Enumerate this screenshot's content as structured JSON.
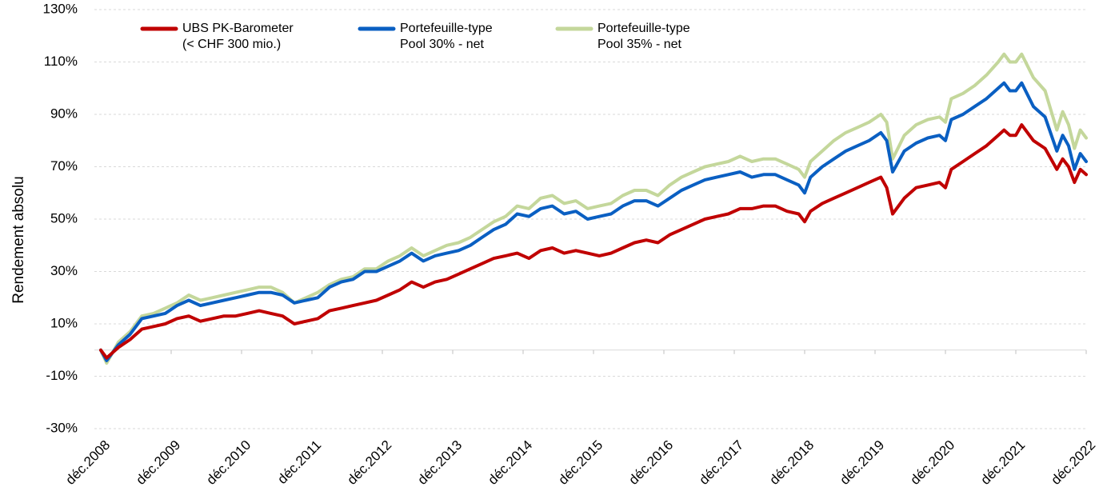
{
  "chart_data": {
    "type": "line",
    "ylabel": "Rendement absolu",
    "ylim": [
      -30,
      130
    ],
    "yticks": [
      -30,
      -10,
      10,
      30,
      50,
      70,
      90,
      110,
      130
    ],
    "ytick_labels": [
      "-30%",
      "-10%",
      "10%",
      "30%",
      "50%",
      "70%",
      "90%",
      "110%",
      "130%"
    ],
    "x_range": [
      2008.917,
      2022.917
    ],
    "x_ticks": [
      {
        "x": 2008.917,
        "label": "déc.2008"
      },
      {
        "x": 2009.917,
        "label": "déc.2009"
      },
      {
        "x": 2010.917,
        "label": "déc.2010"
      },
      {
        "x": 2011.917,
        "label": "déc.2011"
      },
      {
        "x": 2012.917,
        "label": "déc.2012"
      },
      {
        "x": 2013.917,
        "label": "déc.2013"
      },
      {
        "x": 2014.917,
        "label": "déc.2014"
      },
      {
        "x": 2015.917,
        "label": "déc.2015"
      },
      {
        "x": 2016.917,
        "label": "déc.2016"
      },
      {
        "x": 2017.917,
        "label": "déc.2017"
      },
      {
        "x": 2018.917,
        "label": "déc.2018"
      },
      {
        "x": 2019.917,
        "label": "déc.2019"
      },
      {
        "x": 2020.917,
        "label": "déc.2020"
      },
      {
        "x": 2021.917,
        "label": "déc.2021"
      },
      {
        "x": 2022.917,
        "label": "déc.2022"
      }
    ],
    "grid": true,
    "legend_position": "top",
    "series": [
      {
        "name_lines": [
          "UBS PK-Barometer",
          "(< CHF 300 mio.)"
        ],
        "color": "#c00000",
        "points": [
          [
            2008.917,
            0
          ],
          [
            2009.0,
            -3
          ],
          [
            2009.167,
            1
          ],
          [
            2009.333,
            4
          ],
          [
            2009.5,
            8
          ],
          [
            2009.667,
            9
          ],
          [
            2009.833,
            10
          ],
          [
            2010.0,
            12
          ],
          [
            2010.167,
            13
          ],
          [
            2010.333,
            11
          ],
          [
            2010.5,
            12
          ],
          [
            2010.667,
            13
          ],
          [
            2010.833,
            13
          ],
          [
            2011.0,
            14
          ],
          [
            2011.167,
            15
          ],
          [
            2011.333,
            14
          ],
          [
            2011.5,
            13
          ],
          [
            2011.667,
            10
          ],
          [
            2011.833,
            11
          ],
          [
            2012.0,
            12
          ],
          [
            2012.167,
            15
          ],
          [
            2012.333,
            16
          ],
          [
            2012.5,
            17
          ],
          [
            2012.667,
            18
          ],
          [
            2012.833,
            19
          ],
          [
            2013.0,
            21
          ],
          [
            2013.167,
            23
          ],
          [
            2013.333,
            26
          ],
          [
            2013.5,
            24
          ],
          [
            2013.667,
            26
          ],
          [
            2013.833,
            27
          ],
          [
            2014.0,
            29
          ],
          [
            2014.167,
            31
          ],
          [
            2014.333,
            33
          ],
          [
            2014.5,
            35
          ],
          [
            2014.667,
            36
          ],
          [
            2014.833,
            37
          ],
          [
            2015.0,
            35
          ],
          [
            2015.167,
            38
          ],
          [
            2015.333,
            39
          ],
          [
            2015.5,
            37
          ],
          [
            2015.667,
            38
          ],
          [
            2015.833,
            37
          ],
          [
            2016.0,
            36
          ],
          [
            2016.167,
            37
          ],
          [
            2016.333,
            39
          ],
          [
            2016.5,
            41
          ],
          [
            2016.667,
            42
          ],
          [
            2016.833,
            41
          ],
          [
            2017.0,
            44
          ],
          [
            2017.167,
            46
          ],
          [
            2017.333,
            48
          ],
          [
            2017.5,
            50
          ],
          [
            2017.667,
            51
          ],
          [
            2017.833,
            52
          ],
          [
            2018.0,
            54
          ],
          [
            2018.167,
            54
          ],
          [
            2018.333,
            55
          ],
          [
            2018.5,
            55
          ],
          [
            2018.667,
            53
          ],
          [
            2018.833,
            52
          ],
          [
            2018.917,
            49
          ],
          [
            2019.0,
            53
          ],
          [
            2019.167,
            56
          ],
          [
            2019.333,
            58
          ],
          [
            2019.5,
            60
          ],
          [
            2019.667,
            62
          ],
          [
            2019.833,
            64
          ],
          [
            2020.0,
            66
          ],
          [
            2020.083,
            62
          ],
          [
            2020.167,
            52
          ],
          [
            2020.333,
            58
          ],
          [
            2020.5,
            62
          ],
          [
            2020.667,
            63
          ],
          [
            2020.833,
            64
          ],
          [
            2020.917,
            62
          ],
          [
            2021.0,
            69
          ],
          [
            2021.167,
            72
          ],
          [
            2021.333,
            75
          ],
          [
            2021.5,
            78
          ],
          [
            2021.667,
            82
          ],
          [
            2021.75,
            84
          ],
          [
            2021.833,
            82
          ],
          [
            2021.917,
            82
          ],
          [
            2022.0,
            86
          ],
          [
            2022.167,
            80
          ],
          [
            2022.333,
            77
          ],
          [
            2022.5,
            69
          ],
          [
            2022.583,
            73
          ],
          [
            2022.667,
            70
          ],
          [
            2022.75,
            64
          ],
          [
            2022.833,
            69
          ],
          [
            2022.917,
            67
          ]
        ]
      },
      {
        "name_lines": [
          "Portefeuille-type",
          "Pool 30% - net"
        ],
        "color": "#0a5fc2",
        "points": [
          [
            2008.917,
            0
          ],
          [
            2009.0,
            -4
          ],
          [
            2009.167,
            2
          ],
          [
            2009.333,
            6
          ],
          [
            2009.5,
            12
          ],
          [
            2009.667,
            13
          ],
          [
            2009.833,
            14
          ],
          [
            2010.0,
            17
          ],
          [
            2010.167,
            19
          ],
          [
            2010.333,
            17
          ],
          [
            2010.5,
            18
          ],
          [
            2010.667,
            19
          ],
          [
            2010.833,
            20
          ],
          [
            2011.0,
            21
          ],
          [
            2011.167,
            22
          ],
          [
            2011.333,
            22
          ],
          [
            2011.5,
            21
          ],
          [
            2011.667,
            18
          ],
          [
            2011.833,
            19
          ],
          [
            2012.0,
            20
          ],
          [
            2012.167,
            24
          ],
          [
            2012.333,
            26
          ],
          [
            2012.5,
            27
          ],
          [
            2012.667,
            30
          ],
          [
            2012.833,
            30
          ],
          [
            2013.0,
            32
          ],
          [
            2013.167,
            34
          ],
          [
            2013.333,
            37
          ],
          [
            2013.5,
            34
          ],
          [
            2013.667,
            36
          ],
          [
            2013.833,
            37
          ],
          [
            2014.0,
            38
          ],
          [
            2014.167,
            40
          ],
          [
            2014.333,
            43
          ],
          [
            2014.5,
            46
          ],
          [
            2014.667,
            48
          ],
          [
            2014.833,
            52
          ],
          [
            2015.0,
            51
          ],
          [
            2015.167,
            54
          ],
          [
            2015.333,
            55
          ],
          [
            2015.5,
            52
          ],
          [
            2015.667,
            53
          ],
          [
            2015.833,
            50
          ],
          [
            2016.0,
            51
          ],
          [
            2016.167,
            52
          ],
          [
            2016.333,
            55
          ],
          [
            2016.5,
            57
          ],
          [
            2016.667,
            57
          ],
          [
            2016.833,
            55
          ],
          [
            2017.0,
            58
          ],
          [
            2017.167,
            61
          ],
          [
            2017.333,
            63
          ],
          [
            2017.5,
            65
          ],
          [
            2017.667,
            66
          ],
          [
            2017.833,
            67
          ],
          [
            2018.0,
            68
          ],
          [
            2018.167,
            66
          ],
          [
            2018.333,
            67
          ],
          [
            2018.5,
            67
          ],
          [
            2018.667,
            65
          ],
          [
            2018.833,
            63
          ],
          [
            2018.917,
            60
          ],
          [
            2019.0,
            66
          ],
          [
            2019.167,
            70
          ],
          [
            2019.333,
            73
          ],
          [
            2019.5,
            76
          ],
          [
            2019.667,
            78
          ],
          [
            2019.833,
            80
          ],
          [
            2020.0,
            83
          ],
          [
            2020.083,
            80
          ],
          [
            2020.167,
            68
          ],
          [
            2020.333,
            76
          ],
          [
            2020.5,
            79
          ],
          [
            2020.667,
            81
          ],
          [
            2020.833,
            82
          ],
          [
            2020.917,
            80
          ],
          [
            2021.0,
            88
          ],
          [
            2021.167,
            90
          ],
          [
            2021.333,
            93
          ],
          [
            2021.5,
            96
          ],
          [
            2021.667,
            100
          ],
          [
            2021.75,
            102
          ],
          [
            2021.833,
            99
          ],
          [
            2021.917,
            99
          ],
          [
            2022.0,
            102
          ],
          [
            2022.167,
            93
          ],
          [
            2022.333,
            89
          ],
          [
            2022.5,
            76
          ],
          [
            2022.583,
            82
          ],
          [
            2022.667,
            78
          ],
          [
            2022.75,
            69
          ],
          [
            2022.833,
            75
          ],
          [
            2022.917,
            72
          ]
        ]
      },
      {
        "name_lines": [
          "Portefeuille-type",
          "Pool 35% - net"
        ],
        "color": "#c4d79b",
        "points": [
          [
            2008.917,
            0
          ],
          [
            2009.0,
            -5
          ],
          [
            2009.167,
            3
          ],
          [
            2009.333,
            7
          ],
          [
            2009.5,
            13
          ],
          [
            2009.667,
            14
          ],
          [
            2009.833,
            16
          ],
          [
            2010.0,
            18
          ],
          [
            2010.167,
            21
          ],
          [
            2010.333,
            19
          ],
          [
            2010.5,
            20
          ],
          [
            2010.667,
            21
          ],
          [
            2010.833,
            22
          ],
          [
            2011.0,
            23
          ],
          [
            2011.167,
            24
          ],
          [
            2011.333,
            24
          ],
          [
            2011.5,
            22
          ],
          [
            2011.667,
            18
          ],
          [
            2011.833,
            20
          ],
          [
            2012.0,
            22
          ],
          [
            2012.167,
            25
          ],
          [
            2012.333,
            27
          ],
          [
            2012.5,
            28
          ],
          [
            2012.667,
            31
          ],
          [
            2012.833,
            31
          ],
          [
            2013.0,
            34
          ],
          [
            2013.167,
            36
          ],
          [
            2013.333,
            39
          ],
          [
            2013.5,
            36
          ],
          [
            2013.667,
            38
          ],
          [
            2013.833,
            40
          ],
          [
            2014.0,
            41
          ],
          [
            2014.167,
            43
          ],
          [
            2014.333,
            46
          ],
          [
            2014.5,
            49
          ],
          [
            2014.667,
            51
          ],
          [
            2014.833,
            55
          ],
          [
            2015.0,
            54
          ],
          [
            2015.167,
            58
          ],
          [
            2015.333,
            59
          ],
          [
            2015.5,
            56
          ],
          [
            2015.667,
            57
          ],
          [
            2015.833,
            54
          ],
          [
            2016.0,
            55
          ],
          [
            2016.167,
            56
          ],
          [
            2016.333,
            59
          ],
          [
            2016.5,
            61
          ],
          [
            2016.667,
            61
          ],
          [
            2016.833,
            59
          ],
          [
            2017.0,
            63
          ],
          [
            2017.167,
            66
          ],
          [
            2017.333,
            68
          ],
          [
            2017.5,
            70
          ],
          [
            2017.667,
            71
          ],
          [
            2017.833,
            72
          ],
          [
            2018.0,
            74
          ],
          [
            2018.167,
            72
          ],
          [
            2018.333,
            73
          ],
          [
            2018.5,
            73
          ],
          [
            2018.667,
            71
          ],
          [
            2018.833,
            69
          ],
          [
            2018.917,
            66
          ],
          [
            2019.0,
            72
          ],
          [
            2019.167,
            76
          ],
          [
            2019.333,
            80
          ],
          [
            2019.5,
            83
          ],
          [
            2019.667,
            85
          ],
          [
            2019.833,
            87
          ],
          [
            2020.0,
            90
          ],
          [
            2020.083,
            87
          ],
          [
            2020.167,
            73
          ],
          [
            2020.333,
            82
          ],
          [
            2020.5,
            86
          ],
          [
            2020.667,
            88
          ],
          [
            2020.833,
            89
          ],
          [
            2020.917,
            87
          ],
          [
            2021.0,
            96
          ],
          [
            2021.167,
            98
          ],
          [
            2021.333,
            101
          ],
          [
            2021.5,
            105
          ],
          [
            2021.667,
            110
          ],
          [
            2021.75,
            113
          ],
          [
            2021.833,
            110
          ],
          [
            2021.917,
            110
          ],
          [
            2022.0,
            113
          ],
          [
            2022.167,
            104
          ],
          [
            2022.333,
            99
          ],
          [
            2022.5,
            84
          ],
          [
            2022.583,
            91
          ],
          [
            2022.667,
            86
          ],
          [
            2022.75,
            77
          ],
          [
            2022.833,
            84
          ],
          [
            2022.917,
            81
          ]
        ]
      }
    ]
  }
}
